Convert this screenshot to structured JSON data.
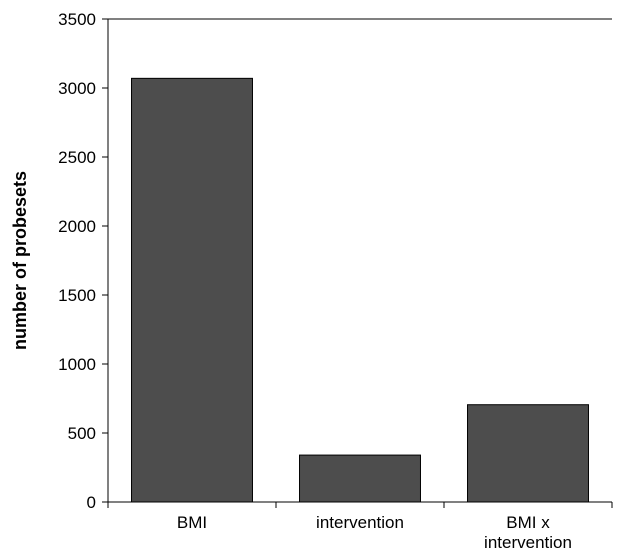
{
  "chart_data": {
    "type": "bar",
    "categories": [
      "BMI",
      "intervention",
      "BMI x intervention"
    ],
    "category_label_lines": [
      [
        "BMI"
      ],
      [
        "intervention"
      ],
      [
        "BMI x",
        "intervention"
      ]
    ],
    "values": [
      3070,
      340,
      705
    ],
    "title": "",
    "xlabel": "",
    "ylabel": "number of probesets",
    "ylim": [
      0,
      3500
    ],
    "yticks": [
      0,
      500,
      1000,
      1500,
      2000,
      2500,
      3000,
      3500
    ],
    "grid": false,
    "legend": "none",
    "bar_color": "#4d4d4d",
    "bar_edge_color": "#000000"
  }
}
